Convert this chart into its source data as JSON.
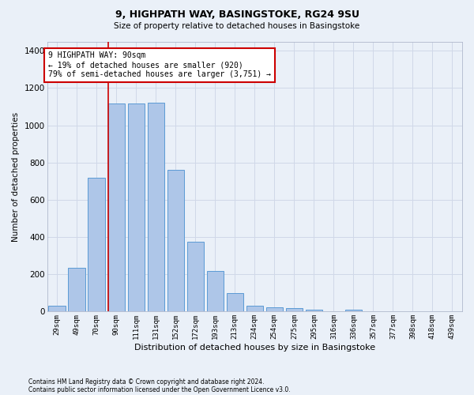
{
  "title1": "9, HIGHPATH WAY, BASINGSTOKE, RG24 9SU",
  "title2": "Size of property relative to detached houses in Basingstoke",
  "xlabel": "Distribution of detached houses by size in Basingstoke",
  "ylabel": "Number of detached properties",
  "categories": [
    "29sqm",
    "49sqm",
    "70sqm",
    "90sqm",
    "111sqm",
    "131sqm",
    "152sqm",
    "172sqm",
    "193sqm",
    "213sqm",
    "234sqm",
    "254sqm",
    "275sqm",
    "295sqm",
    "316sqm",
    "336sqm",
    "357sqm",
    "377sqm",
    "398sqm",
    "418sqm",
    "439sqm"
  ],
  "values": [
    30,
    235,
    720,
    1115,
    1115,
    1120,
    760,
    375,
    220,
    100,
    30,
    22,
    18,
    12,
    0,
    12,
    0,
    0,
    0,
    0,
    0
  ],
  "bar_color": "#aec6e8",
  "bar_edge_color": "#5b9bd5",
  "grid_color": "#d0d8e8",
  "bg_color": "#eaf0f8",
  "vline_color": "#cc0000",
  "annotation_text": "9 HIGHPATH WAY: 90sqm\n← 19% of detached houses are smaller (920)\n79% of semi-detached houses are larger (3,751) →",
  "annotation_box_color": "#ffffff",
  "annotation_box_edge": "#cc0000",
  "footnote1": "Contains HM Land Registry data © Crown copyright and database right 2024.",
  "footnote2": "Contains public sector information licensed under the Open Government Licence v3.0.",
  "ylim": [
    0,
    1450
  ],
  "yticks": [
    0,
    200,
    400,
    600,
    800,
    1000,
    1200,
    1400
  ]
}
